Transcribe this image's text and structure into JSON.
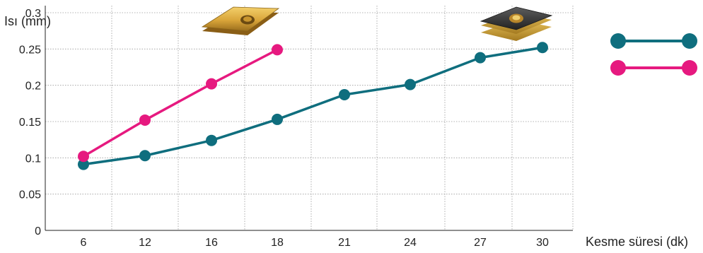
{
  "chart_data": {
    "type": "line",
    "xlabel": "Kesme süresi (dk)",
    "ylabel": "Isı (mm)",
    "categories": [
      "6",
      "12",
      "16",
      "18",
      "21",
      "24",
      "27",
      "30"
    ],
    "ylim": [
      0,
      0.3
    ],
    "yticks": [
      "0",
      "0.05",
      "0.1",
      "0.15",
      "0.2",
      "0.25",
      "0.3"
    ],
    "grid": true,
    "legend_position": "right",
    "series": [
      {
        "color": "#0f6e7e",
        "values": [
          0.091,
          0.103,
          0.124,
          0.153,
          0.187,
          0.201,
          0.238,
          0.252
        ],
        "legend_icon": "dark-insert-icon"
      },
      {
        "color": "#e6197f",
        "values": [
          0.102,
          0.152,
          0.202,
          0.249,
          null,
          null,
          null,
          null
        ],
        "legend_icon": "gold-insert-icon"
      }
    ]
  }
}
